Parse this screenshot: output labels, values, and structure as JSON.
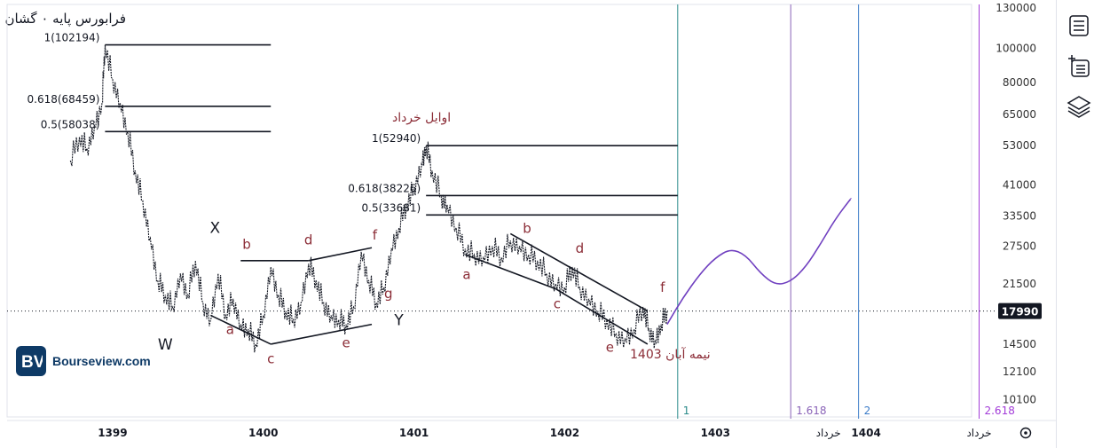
{
  "title": "فرابورس پایه ۰ گشان",
  "brand": {
    "name": "Bourseview.com",
    "logo_text": "BV"
  },
  "colors": {
    "price": "#131722",
    "wave_label": "#8b2c36",
    "structure_label": "#131722",
    "fib_time_teal": "#2a8a8a",
    "fib_time_purple": "#8a63b8",
    "fib_time_blue": "#3b7bc8",
    "fib_time_violet": "#a23bd8",
    "projection": "#7040c0",
    "grid_axis": "#555555"
  },
  "chart_data": {
    "type": "line",
    "scale": "log",
    "ylim": [
      9500,
      130000
    ],
    "xlim": [
      1398.3,
      1404.7
    ],
    "y_ticks": [
      130000,
      100000,
      80000,
      65000,
      53000,
      41000,
      33500,
      27500,
      21500,
      14500,
      12100,
      10100
    ],
    "x_ticks": [
      {
        "x": 1399,
        "label": "1399"
      },
      {
        "x": 1400,
        "label": "1400"
      },
      {
        "x": 1401,
        "label": "1401"
      },
      {
        "x": 1402,
        "label": "1402"
      },
      {
        "x": 1403,
        "label": "1403"
      },
      {
        "x": 1403.75,
        "label": "خرداد"
      },
      {
        "x": 1404,
        "label": "1404"
      },
      {
        "x": 1404.75,
        "label": "خرداد"
      }
    ],
    "last_price": {
      "value": 17990,
      "label": "17990"
    },
    "price_series": [
      [
        1398.72,
        48000
      ],
      [
        1398.78,
        56000
      ],
      [
        1398.83,
        52000
      ],
      [
        1398.88,
        60000
      ],
      [
        1398.93,
        70000
      ],
      [
        1398.95,
        102194
      ],
      [
        1399.0,
        82000
      ],
      [
        1399.05,
        70000
      ],
      [
        1399.1,
        58000
      ],
      [
        1399.15,
        45000
      ],
      [
        1399.2,
        37000
      ],
      [
        1399.25,
        29000
      ],
      [
        1399.3,
        22000
      ],
      [
        1399.35,
        20000
      ],
      [
        1399.4,
        18500
      ],
      [
        1399.45,
        23000
      ],
      [
        1399.5,
        20000
      ],
      [
        1399.55,
        25000
      ],
      [
        1399.6,
        19000
      ],
      [
        1399.65,
        17000
      ],
      [
        1399.7,
        23000
      ],
      [
        1399.75,
        17500
      ],
      [
        1399.8,
        19500
      ],
      [
        1399.85,
        16500
      ],
      [
        1399.9,
        16000
      ],
      [
        1399.95,
        14500
      ],
      [
        1400.0,
        17500
      ],
      [
        1400.05,
        24000
      ],
      [
        1400.1,
        20000
      ],
      [
        1400.15,
        18000
      ],
      [
        1400.2,
        17000
      ],
      [
        1400.25,
        19000
      ],
      [
        1400.3,
        24500
      ],
      [
        1400.35,
        22000
      ],
      [
        1400.4,
        19000
      ],
      [
        1400.45,
        17500
      ],
      [
        1400.5,
        17000
      ],
      [
        1400.55,
        16500
      ],
      [
        1400.6,
        18500
      ],
      [
        1400.65,
        26500
      ],
      [
        1400.7,
        22000
      ],
      [
        1400.75,
        19000
      ],
      [
        1400.8,
        21000
      ],
      [
        1400.85,
        27000
      ],
      [
        1400.9,
        31000
      ],
      [
        1400.95,
        36000
      ],
      [
        1401.0,
        40000
      ],
      [
        1401.05,
        47000
      ],
      [
        1401.08,
        52940
      ],
      [
        1401.12,
        45000
      ],
      [
        1401.18,
        38000
      ],
      [
        1401.22,
        36000
      ],
      [
        1401.28,
        31000
      ],
      [
        1401.34,
        27000
      ],
      [
        1401.4,
        26000
      ],
      [
        1401.46,
        25500
      ],
      [
        1401.52,
        27500
      ],
      [
        1401.58,
        25500
      ],
      [
        1401.64,
        28500
      ],
      [
        1401.7,
        27500
      ],
      [
        1401.76,
        26000
      ],
      [
        1401.82,
        25000
      ],
      [
        1401.88,
        23000
      ],
      [
        1401.94,
        21500
      ],
      [
        1402.0,
        21000
      ],
      [
        1402.05,
        24000
      ],
      [
        1402.1,
        21000
      ],
      [
        1402.16,
        19500
      ],
      [
        1402.22,
        18000
      ],
      [
        1402.28,
        17000
      ],
      [
        1402.34,
        15500
      ],
      [
        1402.4,
        15000
      ],
      [
        1402.46,
        16000
      ],
      [
        1402.52,
        18500
      ],
      [
        1402.56,
        16000
      ],
      [
        1402.6,
        14800
      ],
      [
        1402.64,
        16500
      ],
      [
        1402.68,
        17990
      ]
    ],
    "projection": [
      [
        1402.68,
        16500
      ],
      [
        1402.78,
        19500
      ],
      [
        1402.9,
        23000
      ],
      [
        1403.0,
        25500
      ],
      [
        1403.1,
        27000
      ],
      [
        1403.2,
        26000
      ],
      [
        1403.3,
        23000
      ],
      [
        1403.4,
        21300
      ],
      [
        1403.5,
        21800
      ],
      [
        1403.6,
        24000
      ],
      [
        1403.7,
        28000
      ],
      [
        1403.8,
        33000
      ],
      [
        1403.9,
        37500
      ]
    ],
    "fib_levels": [
      {
        "label": "1(102194)",
        "value": 102194,
        "x_start": 1398.95,
        "x_end": 1400.05
      },
      {
        "label": "0.618(68459)",
        "value": 68459,
        "x_start": 1398.95,
        "x_end": 1400.05
      },
      {
        "label": "0.5(58038)",
        "value": 58038,
        "x_start": 1398.95,
        "x_end": 1400.05
      },
      {
        "label": "1(52940)",
        "value": 52940,
        "x_start": 1401.08,
        "x_end": 1402.75
      },
      {
        "label": "0.618(38226)",
        "value": 38226,
        "x_start": 1401.08,
        "x_end": 1402.75
      },
      {
        "label": "0.5(33681)",
        "value": 33681,
        "x_start": 1401.08,
        "x_end": 1402.75
      }
    ],
    "trendlines": [
      [
        [
          1399.65,
          17500
        ],
        [
          1400.05,
          14500
        ]
      ],
      [
        [
          1400.05,
          14500
        ],
        [
          1400.72,
          16500
        ]
      ],
      [
        [
          1399.85,
          25000
        ],
        [
          1400.3,
          25000
        ]
      ],
      [
        [
          1400.3,
          25000
        ],
        [
          1400.72,
          27200
        ]
      ],
      [
        [
          1401.34,
          26000
        ],
        [
          1401.94,
          20800
        ]
      ],
      [
        [
          1401.64,
          29800
        ],
        [
          1402.55,
          18000
        ]
      ],
      [
        [
          1401.94,
          20800
        ],
        [
          1402.55,
          14500
        ]
      ]
    ],
    "time_lines": [
      {
        "x": 1402.75,
        "label": "1",
        "color": "#2a8a8a"
      },
      {
        "x": 1403.5,
        "label": "1.618",
        "color": "#8a63b8"
      },
      {
        "x": 1403.95,
        "label": "2",
        "color": "#3b7bc8"
      },
      {
        "x": 1404.75,
        "label": "2.618",
        "color": "#a23bd8"
      }
    ],
    "wave_labels": [
      {
        "text": "a",
        "x": 1399.78,
        "y": 15500
      },
      {
        "text": "b",
        "x": 1399.89,
        "y": 27000
      },
      {
        "text": "c",
        "x": 1400.05,
        "y": 12800
      },
      {
        "text": "d",
        "x": 1400.3,
        "y": 27800
      },
      {
        "text": "e",
        "x": 1400.55,
        "y": 14200
      },
      {
        "text": "f",
        "x": 1400.74,
        "y": 28700
      },
      {
        "text": "g",
        "x": 1400.83,
        "y": 19600
      },
      {
        "text": "a",
        "x": 1401.35,
        "y": 22200
      },
      {
        "text": "b",
        "x": 1401.75,
        "y": 30000
      },
      {
        "text": "c",
        "x": 1401.95,
        "y": 18300
      },
      {
        "text": "d",
        "x": 1402.1,
        "y": 26300
      },
      {
        "text": "e",
        "x": 1402.3,
        "y": 13800
      },
      {
        "text": "f",
        "x": 1402.65,
        "y": 20400
      }
    ],
    "structure_labels": [
      {
        "text": "W",
        "x": 1399.35,
        "y": 14000
      },
      {
        "text": "X",
        "x": 1399.68,
        "y": 30000
      },
      {
        "text": "Y",
        "x": 1400.9,
        "y": 16400
      }
    ],
    "annotations": [
      {
        "text": "اوایل خرداد",
        "x": 1401.05,
        "y": 62000
      },
      {
        "text": "نیمه آبان 1403",
        "x": 1402.7,
        "y": 13200
      }
    ]
  }
}
